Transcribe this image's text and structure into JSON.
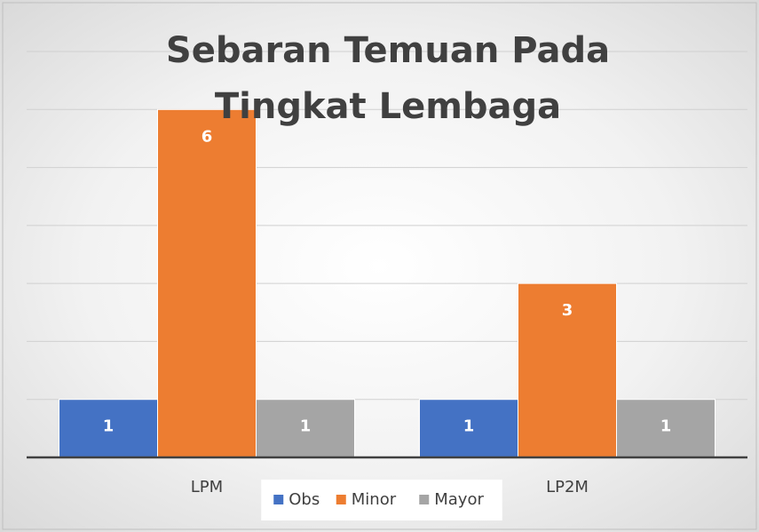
{
  "chart_data": {
    "type": "bar",
    "title": "Sebaran Temuan Pada Tingkat Lembaga",
    "categories": [
      "LPM",
      "LP2M"
    ],
    "series": [
      {
        "name": "Obs",
        "color": "#4472c4",
        "values": [
          1,
          1
        ]
      },
      {
        "name": "Minor",
        "color": "#ed7d31",
        "values": [
          6,
          3
        ]
      },
      {
        "name": "Mayor",
        "color": "#a5a5a5",
        "values": [
          1,
          1
        ]
      }
    ],
    "ylim": [
      0,
      7
    ],
    "yticks": [
      0,
      1,
      2,
      3,
      4,
      5,
      6,
      7
    ],
    "grid": true,
    "legend": "bottom"
  }
}
